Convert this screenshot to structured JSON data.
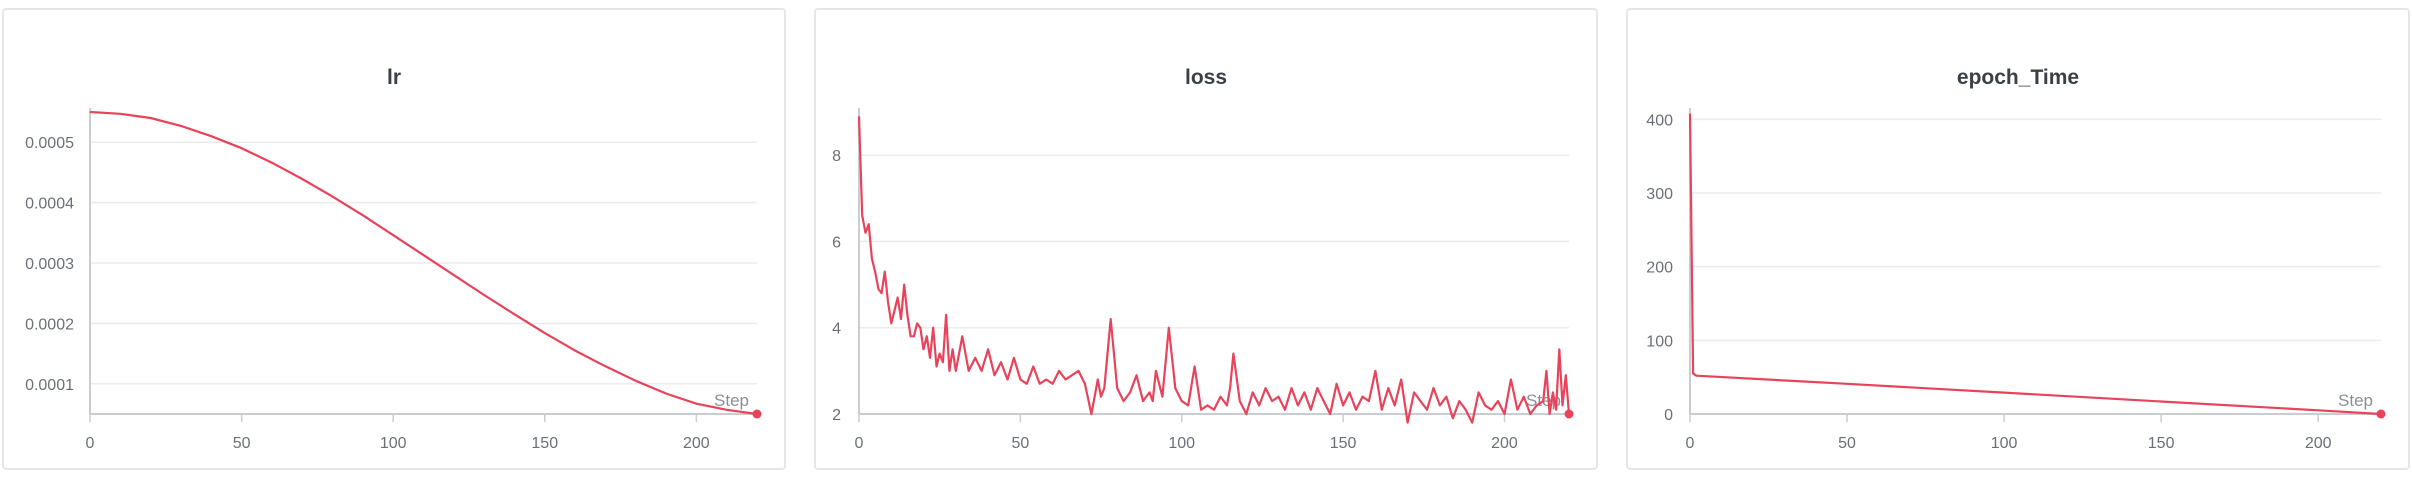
{
  "colors": {
    "series": "#e8435a",
    "grid": "#ececef",
    "axis": "#c9ccd1"
  },
  "chart_data": [
    {
      "type": "line",
      "title": "lr",
      "xlabel": "Step",
      "xlim": [
        0,
        220
      ],
      "ylim": [
        5e-05,
        0.00055
      ],
      "yticks": [
        0.0001,
        0.0002,
        0.0003,
        0.0004,
        0.0005
      ],
      "ytick_labels": [
        "0.0001",
        "0.0002",
        "0.0003",
        "0.0004",
        "0.0005"
      ],
      "xticks": [
        0,
        50,
        100,
        150,
        200
      ],
      "series": [
        {
          "x": [
            0,
            10,
            20,
            30,
            40,
            50,
            60,
            70,
            80,
            90,
            100,
            110,
            120,
            130,
            140,
            150,
            160,
            170,
            180,
            190,
            200,
            210,
            220
          ],
          "y": [
            0.00055,
            0.000547,
            0.00054,
            0.000527,
            0.00051,
            0.00049,
            0.000466,
            0.000439,
            0.00041,
            0.000379,
            0.000346,
            0.000313,
            0.00028,
            0.000247,
            0.000215,
            0.000184,
            0.000155,
            0.000129,
            0.000105,
            8.4e-05,
            6.7e-05,
            5.7e-05,
            5e-05
          ]
        }
      ]
    },
    {
      "type": "line",
      "title": "loss",
      "xlabel": "Step",
      "xlim": [
        0,
        220
      ],
      "ylim": [
        2,
        9
      ],
      "yticks": [
        2,
        4,
        6,
        8
      ],
      "ytick_labels": [
        "2",
        "4",
        "6",
        "8"
      ],
      "xticks": [
        0,
        50,
        100,
        150,
        200
      ],
      "series": [
        {
          "x": [
            0,
            1,
            2,
            3,
            4,
            5,
            6,
            7,
            8,
            9,
            10,
            11,
            12,
            13,
            14,
            15,
            16,
            17,
            18,
            19,
            20,
            21,
            22,
            23,
            24,
            25,
            26,
            27,
            28,
            29,
            30,
            32,
            34,
            36,
            38,
            40,
            42,
            44,
            46,
            48,
            50,
            52,
            54,
            56,
            58,
            60,
            62,
            64,
            66,
            68,
            70,
            72,
            74,
            75,
            76,
            78,
            80,
            82,
            84,
            86,
            88,
            90,
            91,
            92,
            94,
            96,
            98,
            100,
            102,
            104,
            106,
            108,
            110,
            112,
            114,
            115,
            116,
            118,
            120,
            122,
            124,
            126,
            128,
            130,
            132,
            134,
            136,
            138,
            140,
            142,
            144,
            146,
            148,
            150,
            152,
            154,
            156,
            158,
            160,
            162,
            164,
            166,
            168,
            170,
            172,
            174,
            176,
            178,
            180,
            182,
            184,
            186,
            188,
            190,
            192,
            194,
            196,
            198,
            200,
            202,
            204,
            206,
            208,
            210,
            212,
            213,
            214,
            215,
            216,
            217,
            218,
            219,
            220
          ],
          "y": [
            8.9,
            6.6,
            6.2,
            6.4,
            5.6,
            5.3,
            4.9,
            4.8,
            5.3,
            4.6,
            4.1,
            4.4,
            4.7,
            4.2,
            5.0,
            4.3,
            3.8,
            3.8,
            4.1,
            4.0,
            3.5,
            3.8,
            3.3,
            4.0,
            3.1,
            3.4,
            3.2,
            4.3,
            3.0,
            3.5,
            3.0,
            3.8,
            3.0,
            3.3,
            3.0,
            3.5,
            2.9,
            3.2,
            2.8,
            3.3,
            2.8,
            2.7,
            3.1,
            2.7,
            2.8,
            2.7,
            3.0,
            2.8,
            2.9,
            3.0,
            2.7,
            2.0,
            2.8,
            2.4,
            2.6,
            4.2,
            2.6,
            2.3,
            2.5,
            2.9,
            2.3,
            2.5,
            2.3,
            3.0,
            2.4,
            4.0,
            2.6,
            2.3,
            2.2,
            3.1,
            2.1,
            2.2,
            2.1,
            2.4,
            2.2,
            2.6,
            3.4,
            2.3,
            2.0,
            2.5,
            2.2,
            2.6,
            2.3,
            2.4,
            2.1,
            2.6,
            2.2,
            2.5,
            2.1,
            2.6,
            2.3,
            2.0,
            2.7,
            2.2,
            2.5,
            2.1,
            2.4,
            2.3,
            3.0,
            2.1,
            2.6,
            2.2,
            2.8,
            1.8,
            2.5,
            2.3,
            2.1,
            2.6,
            2.2,
            2.4,
            1.9,
            2.3,
            2.1,
            1.8,
            2.5,
            2.2,
            2.1,
            2.3,
            2.0,
            2.8,
            2.1,
            2.4,
            2.0,
            2.2,
            2.3,
            3.0,
            2.0,
            2.5,
            2.1,
            3.5,
            2.2,
            2.9,
            2.0
          ]
        }
      ]
    },
    {
      "type": "line",
      "title": "epoch_Time",
      "xlabel": "Step",
      "xlim": [
        0,
        220
      ],
      "ylim": [
        0,
        410
      ],
      "yticks": [
        0,
        100,
        200,
        300,
        400
      ],
      "ytick_labels": [
        "0",
        "100",
        "200",
        "300",
        "400"
      ],
      "xticks": [
        0,
        50,
        100,
        150,
        200
      ],
      "series": [
        {
          "x": [
            0,
            1,
            2,
            50,
            100,
            150,
            200,
            220
          ],
          "y": [
            408,
            55,
            52,
            41,
            29,
            17,
            5,
            0
          ]
        }
      ]
    }
  ]
}
